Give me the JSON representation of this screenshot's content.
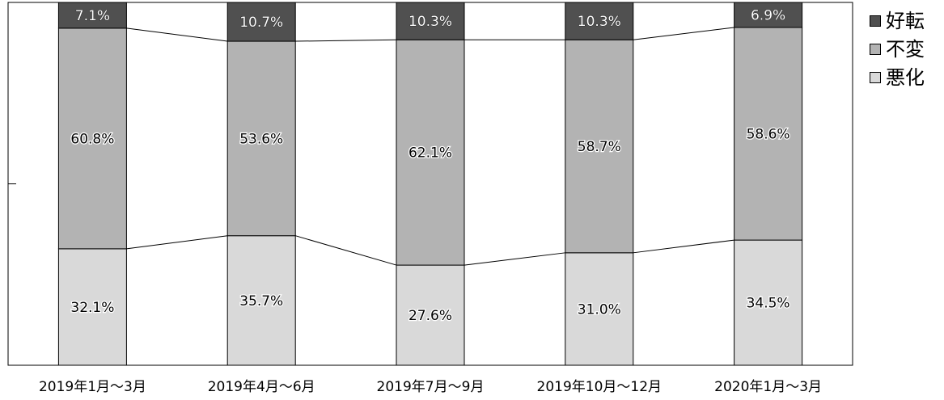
{
  "chart_data": {
    "type": "bar",
    "stacked": true,
    "percent": true,
    "categories": [
      "2019年1月～3月",
      "2019年4月～6月",
      "2019年7月～9月",
      "2019年10月～12月",
      "2020年1月～3月"
    ],
    "series": [
      {
        "name": "悪化",
        "values": [
          32.1,
          35.7,
          27.6,
          31.0,
          34.5
        ],
        "labels": [
          "32.1%",
          "35.7%",
          "27.6%",
          "31.0%",
          "34.5%"
        ],
        "color": "#d9d9d9"
      },
      {
        "name": "不変",
        "values": [
          60.8,
          53.6,
          62.1,
          58.7,
          58.6
        ],
        "labels": [
          "60.8%",
          "53.6%",
          "62.1%",
          "58.7%",
          "58.6%"
        ],
        "color": "#b3b3b3"
      },
      {
        "name": "好転",
        "values": [
          7.1,
          10.7,
          10.3,
          10.3,
          6.9
        ],
        "labels": [
          "7.1%",
          "10.7%",
          "10.3%",
          "10.3%",
          "6.9%"
        ],
        "color": "#505050"
      }
    ],
    "ylim": [
      0,
      100
    ],
    "legend_position": "right",
    "series_lines": true,
    "grid": false
  },
  "legend": [
    {
      "label": "好転",
      "color": "#505050"
    },
    {
      "label": "不変",
      "color": "#b3b3b3"
    },
    {
      "label": "悪化",
      "color": "#d9d9d9"
    }
  ]
}
